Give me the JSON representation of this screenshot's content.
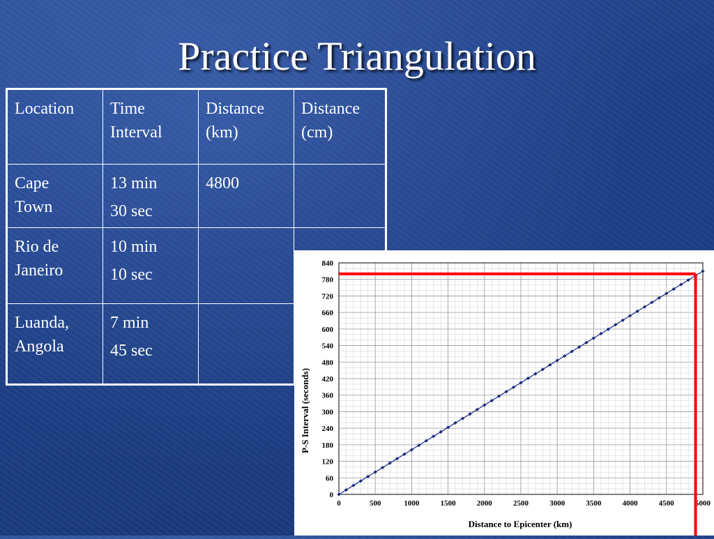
{
  "slide": {
    "title": "Practice Triangulation"
  },
  "table": {
    "headers": [
      "Location",
      "Time Interval",
      "Distance (km)",
      "Distance (cm)"
    ],
    "header_lines": [
      [
        "Location"
      ],
      [
        "Time",
        "Interval"
      ],
      [
        "Distance",
        "(km)"
      ],
      [
        "Distance",
        "(cm)"
      ]
    ],
    "rows": [
      {
        "location": [
          "Cape",
          "Town"
        ],
        "time": [
          "13 min",
          "30 sec"
        ],
        "distance_km": "4800",
        "distance_cm": ""
      },
      {
        "location": [
          "Rio de",
          "Janeiro"
        ],
        "time": [
          "10 min",
          "10 sec"
        ],
        "distance_km": "",
        "distance_cm": ""
      },
      {
        "location": [
          "Luanda,",
          "Angola"
        ],
        "time": [
          "7 min",
          "45 sec"
        ],
        "distance_km": "",
        "distance_cm": ""
      }
    ]
  },
  "chart_data": {
    "type": "line",
    "title": "",
    "xlabel": "Distance to Epicenter (km)",
    "ylabel": "P-S Interval (seconds)",
    "xlim": [
      0,
      5000
    ],
    "ylim": [
      0,
      840
    ],
    "xticks": [
      0,
      500,
      1000,
      1500,
      2000,
      2500,
      3000,
      3500,
      4000,
      4500,
      5000
    ],
    "yticks": [
      0,
      60,
      120,
      180,
      240,
      300,
      360,
      420,
      480,
      540,
      600,
      660,
      720,
      780,
      840
    ],
    "grid": true,
    "series": [
      {
        "name": "",
        "color": "#1a2a80",
        "marker": "diamond",
        "x": [
          0,
          100,
          200,
          300,
          400,
          500,
          600,
          700,
          800,
          900,
          1000,
          1100,
          1200,
          1300,
          1400,
          1500,
          1600,
          1700,
          1800,
          1900,
          2000,
          2100,
          2200,
          2300,
          2400,
          2500,
          2600,
          2700,
          2800,
          2900,
          3000,
          3100,
          3200,
          3300,
          3400,
          3500,
          3600,
          3700,
          3800,
          3900,
          4000,
          4100,
          4200,
          4300,
          4400,
          4500,
          4600,
          4700,
          4800,
          4900,
          5000
        ],
        "y": [
          0,
          16.2,
          32.4,
          48.6,
          64.8,
          81,
          97.2,
          113.4,
          129.6,
          145.8,
          162,
          178.2,
          194.4,
          210.6,
          226.8,
          243,
          259.2,
          275.4,
          291.6,
          307.8,
          324,
          340.2,
          356.4,
          372.6,
          388.8,
          405,
          421.2,
          437.4,
          453.6,
          469.8,
          486,
          502.2,
          518.4,
          534.6,
          550.8,
          567,
          583.2,
          599.4,
          615.6,
          631.8,
          648,
          664.2,
          680.4,
          696.6,
          712.8,
          729,
          745.2,
          761.4,
          777.6,
          793.8,
          810
        ]
      }
    ],
    "annotations": [
      {
        "type": "reference-lines",
        "color": "#ff0000",
        "x": 4900,
        "y": 800
      }
    ]
  }
}
